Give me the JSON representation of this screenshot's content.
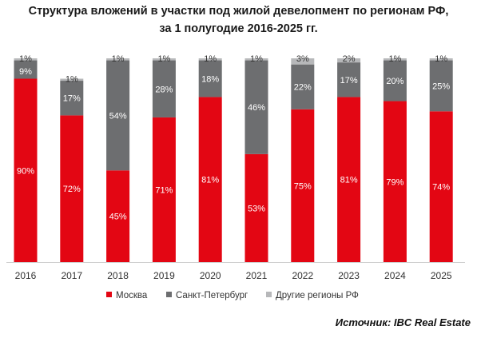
{
  "title_lines": [
    "Структура вложений в участки под жилой девелопмент по регионам РФ,",
    "за 1 полугодие 2016-2025 гг."
  ],
  "source": "Источник: IBC Real Estate",
  "colors": {
    "moscow": "#E30613",
    "spb": "#6D6E70",
    "other": "#B7B8BA",
    "label_light": "#ffffff",
    "label_dark": "#333333"
  },
  "chart_data": {
    "type": "bar",
    "stacked": true,
    "categories": [
      "2016",
      "2017",
      "2018",
      "2019",
      "2020",
      "2021",
      "2022",
      "2023",
      "2024",
      "2025"
    ],
    "series": [
      {
        "name": "Москва",
        "values": [
          90,
          72,
          45,
          71,
          81,
          53,
          75,
          81,
          79,
          74
        ]
      },
      {
        "name": "Санкт-Петербург",
        "values": [
          9,
          17,
          54,
          28,
          18,
          46,
          22,
          17,
          20,
          25
        ]
      },
      {
        "name": "Другие регионы РФ",
        "values": [
          1,
          1,
          1,
          1,
          1,
          1,
          3,
          2,
          1,
          1
        ]
      }
    ],
    "value_suffix": "%",
    "ylim": [
      0,
      100
    ],
    "legend_position": "bottom",
    "grid": false
  }
}
